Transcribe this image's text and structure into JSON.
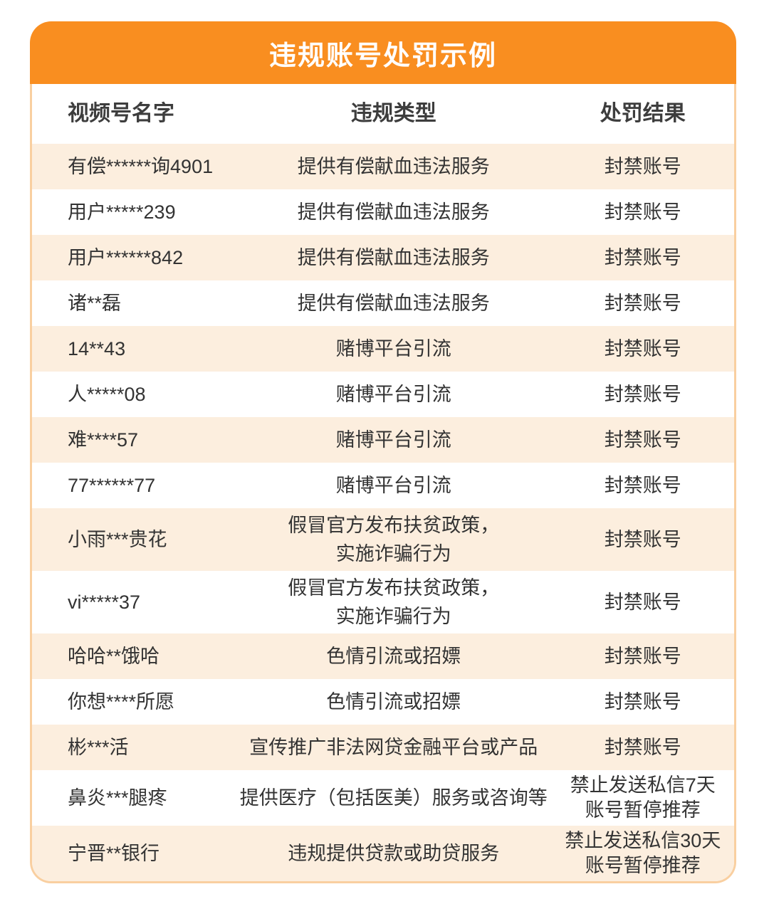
{
  "title": "违规账号处罚示例",
  "columns": [
    "视频号名字",
    "违规类型",
    "处罚结果"
  ],
  "rows": [
    {
      "name": "有偿******询4901",
      "violation": "提供有偿献血违法服务",
      "penalty": "封禁账号"
    },
    {
      "name": "用户*****239",
      "violation": "提供有偿献血违法服务",
      "penalty": "封禁账号"
    },
    {
      "name": "用户******842",
      "violation": "提供有偿献血违法服务",
      "penalty": "封禁账号"
    },
    {
      "name": "诸**磊",
      "violation": "提供有偿献血违法服务",
      "penalty": "封禁账号"
    },
    {
      "name": "14**43",
      "violation": "赌博平台引流",
      "penalty": "封禁账号"
    },
    {
      "name": "人*****08",
      "violation": "赌博平台引流",
      "penalty": "封禁账号"
    },
    {
      "name": "难****57",
      "violation": "赌博平台引流",
      "penalty": "封禁账号"
    },
    {
      "name": "77******77",
      "violation": "赌博平台引流",
      "penalty": "封禁账号"
    },
    {
      "name": "小雨***贵花",
      "violation": "假冒官方发布扶贫政策，\n实施诈骗行为",
      "penalty": "封禁账号"
    },
    {
      "name": "vi*****37",
      "violation": "假冒官方发布扶贫政策，\n实施诈骗行为",
      "penalty": "封禁账号"
    },
    {
      "name": "哈哈**饿哈",
      "violation": "色情引流或招嫖",
      "penalty": "封禁账号"
    },
    {
      "name": "你想****所愿",
      "violation": "色情引流或招嫖",
      "penalty": "封禁账号"
    },
    {
      "name": "彬***活",
      "violation": "宣传推广非法网贷金融平台或产品",
      "penalty": "封禁账号"
    },
    {
      "name": "鼻炎***腿疼",
      "violation": "提供医疗（包括医美）服务或咨询等",
      "penalty": "禁止发送私信7天\n账号暂停推荐"
    },
    {
      "name": "宁晋**银行",
      "violation": "违规提供贷款或助贷服务",
      "penalty": "禁止发送私信30天\n账号暂停推荐"
    }
  ],
  "colors": {
    "header_bg": "#F98E20",
    "alt_row_bg": "#FCEEDE",
    "card_border": "#F9CFA0",
    "title_text": "#FFFFFF",
    "body_text": "#333333"
  }
}
